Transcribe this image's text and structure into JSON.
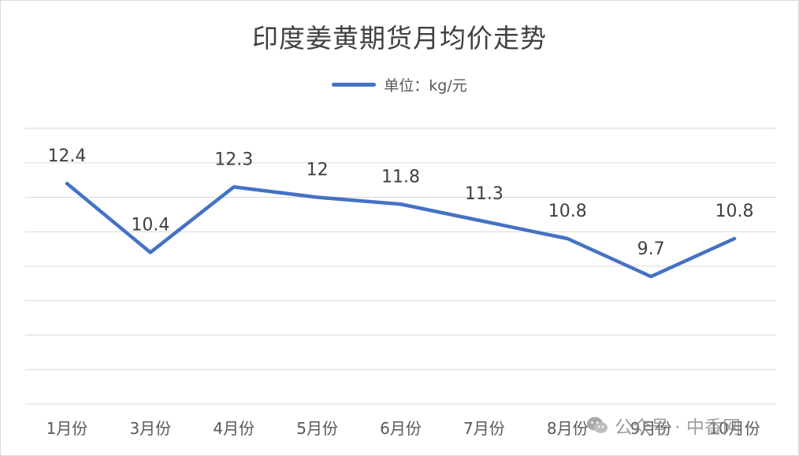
{
  "chart_data": {
    "type": "line",
    "title": "印度姜黄期货月均价走势",
    "categories": [
      "1月份",
      "3月份",
      "4月份",
      "5月份",
      "6月份",
      "7月份",
      "8月份",
      "9月份",
      "10月份"
    ],
    "series": [
      {
        "name": "单位：kg/元",
        "values": [
          12.4,
          10.4,
          12.3,
          12,
          11.8,
          11.3,
          10.8,
          9.7,
          10.8
        ],
        "labels": [
          "12.4",
          "10.4",
          "12.3",
          "12",
          "11.8",
          "11.3",
          "10.8",
          "9.7",
          "10.8"
        ]
      }
    ],
    "ylim": [
      6,
      14
    ],
    "y_gridline_step": 1,
    "y_tick_labels_shown": false,
    "grid": true,
    "legend_position": "top-center",
    "colors": {
      "series": "#4472c4",
      "grid": "#d9d9d9",
      "text": "#404040"
    }
  },
  "watermark": {
    "icon": "wechat-icon",
    "text": "公众号 · 中香网"
  }
}
